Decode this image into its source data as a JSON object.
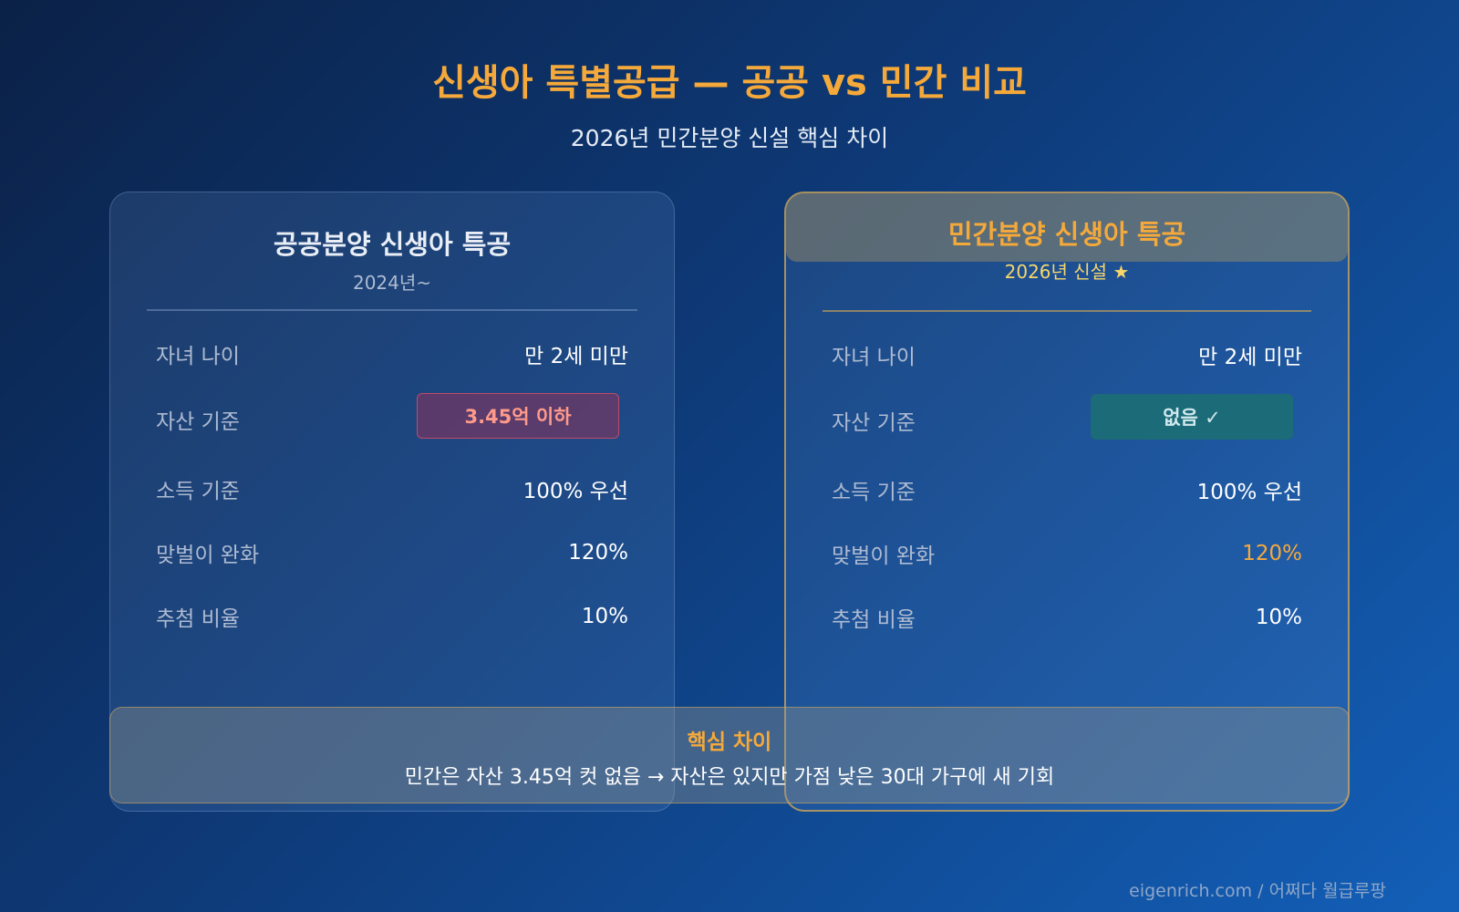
{
  "header": {
    "title": "신생아 특별공급 — 공공 vs 민간 비교",
    "subtitle": "2026년 민간분양 신설 핵심 차이"
  },
  "cards": [
    {
      "title": "공공분양 신생아 특공",
      "period": "2024년~",
      "rows": [
        {
          "label": "자녀 나이",
          "value": "만 2세 미만"
        },
        {
          "label": "자산 기준",
          "value": "3.45억 이하"
        },
        {
          "label": "소득 기준",
          "value": "100% 우선"
        },
        {
          "label": "맞벌이 완화",
          "value": "120%"
        },
        {
          "label": "추첨 비율",
          "value": "10%"
        }
      ]
    },
    {
      "title": "민간분양 신생아 특공",
      "period": "2026년 신설 ★",
      "rows": [
        {
          "label": "자녀 나이",
          "value": "만 2세 미만"
        },
        {
          "label": "자산 기준",
          "value": "없음 ✓"
        },
        {
          "label": "소득 기준",
          "value": "100% 우선"
        },
        {
          "label": "맞벌이 완화",
          "value": "120%"
        },
        {
          "label": "추첨 비율",
          "value": "10%"
        }
      ]
    }
  ],
  "key_difference": {
    "title": "핵심 차이",
    "text": "민간은 자산 3.45억 컷 없음 → 자산은 있지만 가점 낮은 30대 가구에 새 기회"
  },
  "footer": "eigenrich.com / 어쩌다 월급루팡",
  "colors": {
    "accent": "#f5a93a",
    "highlight_yellow": "#f6d66a",
    "badge_red_text": "#ff9a8a",
    "badge_teal_bg": "#1c6b78"
  }
}
